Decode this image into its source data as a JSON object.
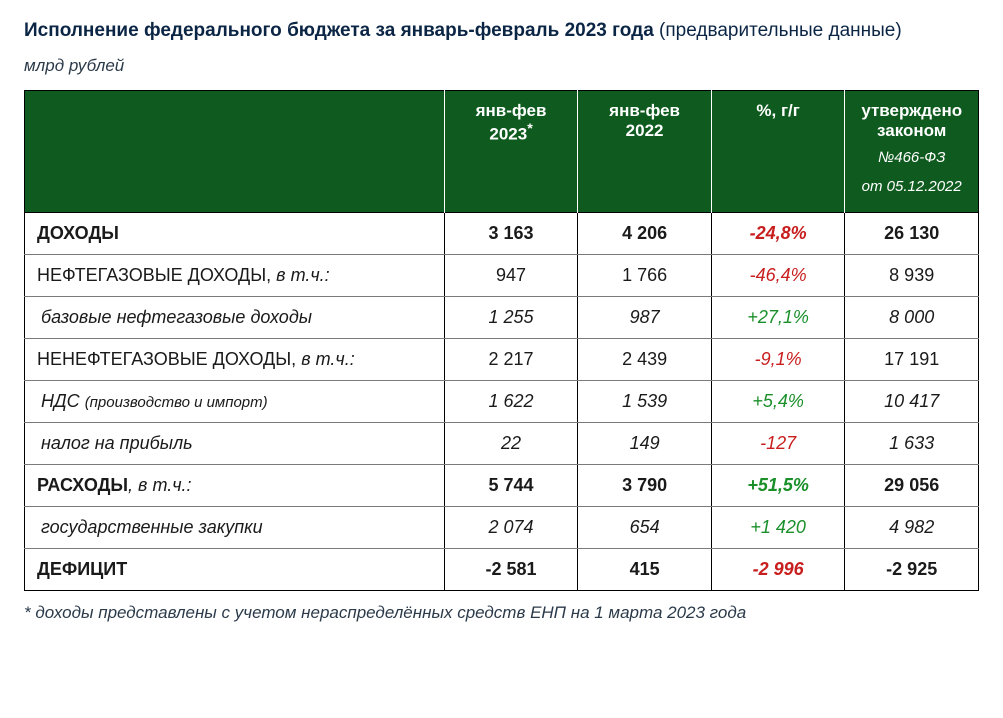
{
  "title": {
    "main": "Исполнение федерального бюджета за январь-февраль 2023 года",
    "sub": "(предварительные данные)"
  },
  "units": "млрд рублей",
  "colors": {
    "header_bg": "#0f5b1f",
    "header_fg": "#ffffff",
    "positive": "#1a8f2a",
    "negative": "#c81e1e",
    "text": "#1a1a1a",
    "title": "#0b2545",
    "border": "#000000",
    "row_border": "#7a7a7a",
    "background": "#ffffff"
  },
  "table": {
    "type": "table",
    "columns": [
      {
        "label_empty": ""
      },
      {
        "line1": "янв-фев",
        "line2": "2023",
        "asterisk": "*"
      },
      {
        "line1": "янв-фев",
        "line2": "2022"
      },
      {
        "line1": "%, г/г"
      },
      {
        "line1": "утверждено",
        "line2": "законом",
        "sub1": "№466-ФЗ",
        "sub2": "от 05.12.2022"
      }
    ],
    "rows": [
      {
        "label": "ДОХОДЫ",
        "bold": true,
        "italic": false,
        "indent": 0,
        "c2023": "3 163",
        "c2022": "4 206",
        "pct": "-24,8%",
        "pct_color": "red",
        "law": "26 130"
      },
      {
        "label_prefix": "НЕФТЕГАЗОВЫЕ ДОХОДЫ, ",
        "label_suffix": "в т.ч.:",
        "bold": false,
        "italic_suffix": true,
        "indent": 0,
        "c2023": "947",
        "c2022": "1 766",
        "pct": "-46,4%",
        "pct_color": "red",
        "law": "8 939"
      },
      {
        "label": "базовые нефтегазовые доходы",
        "bold": false,
        "italic": true,
        "indent": 1,
        "c2023": "1 255",
        "c2022": "987",
        "pct": "+27,1%",
        "pct_color": "green",
        "law": "8 000",
        "num_italic": true
      },
      {
        "label_prefix": "НЕНЕФТЕГАЗОВЫЕ ДОХОДЫ, ",
        "label_suffix": "в т.ч.:",
        "bold": false,
        "italic_suffix": true,
        "indent": 0,
        "c2023": "2 217",
        "c2022": "2 439",
        "pct": "-9,1%",
        "pct_color": "red",
        "law": "17 191"
      },
      {
        "label_prefix": "НДС ",
        "label_suffix": "(производство и импорт)",
        "bold": false,
        "italic": true,
        "suffix_small": true,
        "indent": 1,
        "c2023": "1 622",
        "c2022": "1 539",
        "pct": "+5,4%",
        "pct_color": "green",
        "law": "10 417",
        "num_italic": true
      },
      {
        "label": "налог на прибыль",
        "bold": false,
        "italic": true,
        "indent": 1,
        "c2023": "22",
        "c2022": "149",
        "pct": "-127",
        "pct_color": "red",
        "law": "1 633",
        "num_italic": true
      },
      {
        "label_prefix": "РАСХОДЫ",
        "label_suffix": ", в т.ч.:",
        "prefix_bold": true,
        "italic_suffix": true,
        "indent": 0,
        "c2023": "5 744",
        "c2022": "3 790",
        "pct": "+51,5%",
        "pct_color": "green",
        "law": "29 056",
        "bold": true
      },
      {
        "label": "государственные закупки",
        "bold": false,
        "italic": true,
        "indent": 1,
        "c2023": "2 074",
        "c2022": "654",
        "pct": "+1 420",
        "pct_color": "green",
        "law": "4 982",
        "num_italic": true
      },
      {
        "label": "ДЕФИЦИТ",
        "bold": true,
        "italic": false,
        "indent": 0,
        "c2023": "-2 581",
        "c2022": "415",
        "pct": "-2 996",
        "pct_color": "red",
        "law": "-2 925"
      }
    ]
  },
  "footnote": "* доходы представлены с учетом нераспределённых средств ЕНП на 1 марта 2023 года"
}
